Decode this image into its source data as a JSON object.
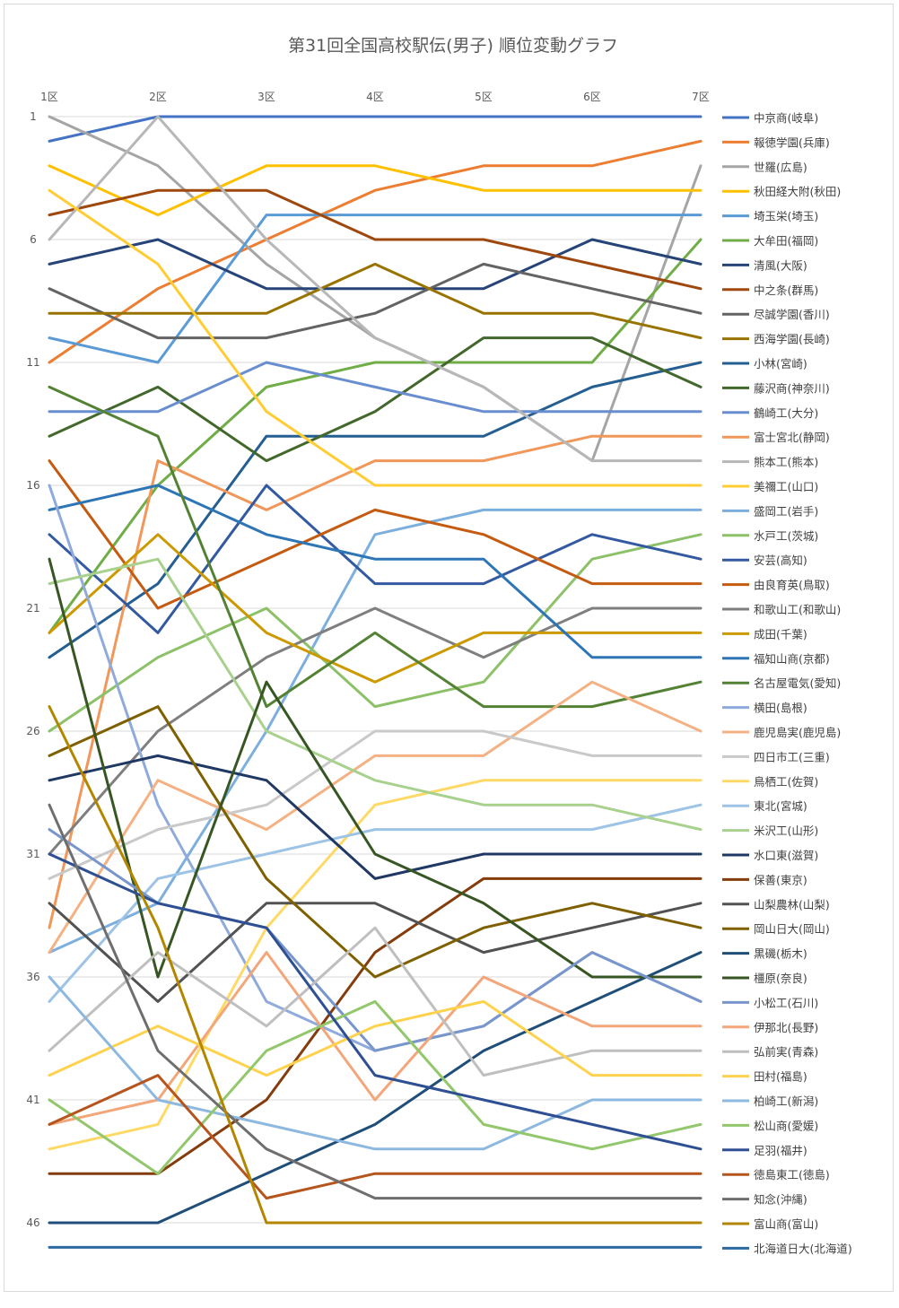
{
  "chart_data": {
    "type": "line",
    "title": "第31回全国高校駅伝(男子) 順位変動グラフ",
    "categories": [
      "1区",
      "2区",
      "3区",
      "4区",
      "5区",
      "6区",
      "7区"
    ],
    "y_ticks": [
      "1",
      "6",
      "11",
      "16",
      "21",
      "26",
      "31",
      "36",
      "41",
      "46"
    ],
    "ylim": [
      1,
      47
    ],
    "y_inverted": true,
    "grid": "horizontal",
    "legend_position": "right",
    "series": [
      {
        "name": "中京商(岐阜)",
        "color": "#4472C4",
        "values": [
          2,
          1,
          1,
          1,
          1,
          1,
          1
        ]
      },
      {
        "name": "報徳学園(兵庫)",
        "color": "#ED7D31",
        "values": [
          11,
          8,
          6,
          4,
          3,
          3,
          2
        ]
      },
      {
        "name": "世羅(広島)",
        "color": "#A5A5A5",
        "values": [
          1,
          3,
          7,
          10,
          12,
          15,
          3
        ]
      },
      {
        "name": "秋田経大附(秋田)",
        "color": "#FFC000",
        "values": [
          3,
          5,
          3,
          3,
          4,
          4,
          4
        ]
      },
      {
        "name": "埼玉栄(埼玉)",
        "color": "#5B9BD5",
        "values": [
          10,
          11,
          5,
          5,
          5,
          5,
          5
        ]
      },
      {
        "name": "大牟田(福岡)",
        "color": "#70AD47",
        "values": [
          22,
          16,
          12,
          11,
          11,
          11,
          6
        ]
      },
      {
        "name": "清風(大阪)",
        "color": "#264478",
        "values": [
          7,
          6,
          8,
          8,
          8,
          6,
          7
        ]
      },
      {
        "name": "中之条(群馬)",
        "color": "#9E480E",
        "values": [
          5,
          4,
          4,
          6,
          6,
          7,
          8
        ]
      },
      {
        "name": "尽誠学園(香川)",
        "color": "#636363",
        "values": [
          8,
          10,
          10,
          9,
          7,
          8,
          9
        ]
      },
      {
        "name": "西海学園(長崎)",
        "color": "#997300",
        "values": [
          9,
          9,
          9,
          7,
          9,
          9,
          10
        ]
      },
      {
        "name": "小林(宮崎)",
        "color": "#255E91",
        "values": [
          23,
          20,
          14,
          14,
          14,
          12,
          11
        ]
      },
      {
        "name": "藤沢商(神奈川)",
        "color": "#43682B",
        "values": [
          14,
          12,
          15,
          13,
          10,
          10,
          12
        ]
      },
      {
        "name": "鶴崎工(大分)",
        "color": "#698ED0",
        "values": [
          13,
          13,
          11,
          12,
          13,
          13,
          13
        ]
      },
      {
        "name": "富士宮北(静岡)",
        "color": "#F1975A",
        "values": [
          34,
          15,
          17,
          15,
          15,
          14,
          14
        ]
      },
      {
        "name": "熊本工(熊本)",
        "color": "#B7B7B7",
        "values": [
          6,
          1,
          6,
          10,
          12,
          15,
          15
        ]
      },
      {
        "name": "美禰工(山口)",
        "color": "#FFCD33",
        "values": [
          4,
          7,
          13,
          16,
          16,
          16,
          16
        ]
      },
      {
        "name": "盛岡工(岩手)",
        "color": "#7CAFDD",
        "values": [
          35,
          33,
          26,
          18,
          17,
          17,
          17
        ]
      },
      {
        "name": "水戸工(茨城)",
        "color": "#8CC168",
        "values": [
          26,
          23,
          21,
          25,
          24,
          19,
          18
        ]
      },
      {
        "name": "安芸(高知)",
        "color": "#335AA1",
        "values": [
          18,
          22,
          16,
          20,
          20,
          18,
          19
        ]
      },
      {
        "name": "由良育英(鳥取)",
        "color": "#C55A11",
        "values": [
          15,
          21,
          19,
          17,
          18,
          20,
          20
        ]
      },
      {
        "name": "和歌山工(和歌山)",
        "color": "#7F7F7F",
        "values": [
          31,
          26,
          23,
          21,
          23,
          21,
          21
        ]
      },
      {
        "name": "成田(千葉)",
        "color": "#CC9900",
        "values": [
          22,
          18,
          22,
          24,
          22,
          22,
          22
        ]
      },
      {
        "name": "福知山商(京都)",
        "color": "#2E75B6",
        "values": [
          17,
          16,
          18,
          19,
          19,
          23,
          23
        ]
      },
      {
        "name": "名古屋電気(愛知)",
        "color": "#548235",
        "values": [
          12,
          14,
          25,
          22,
          25,
          25,
          24
        ]
      },
      {
        "name": "横田(島根)",
        "color": "#8FAADC",
        "values": [
          16,
          29,
          37,
          39,
          38,
          35,
          37
        ]
      },
      {
        "name": "鹿児島実(鹿児島)",
        "color": "#F4B183",
        "values": [
          35,
          28,
          30,
          27,
          27,
          24,
          26
        ]
      },
      {
        "name": "四日市工(三重)",
        "color": "#C9C9C9",
        "values": [
          32,
          30,
          29,
          26,
          26,
          27,
          27
        ]
      },
      {
        "name": "鳥栖工(佐賀)",
        "color": "#FFD966",
        "values": [
          43,
          42,
          34,
          29,
          28,
          28,
          28
        ]
      },
      {
        "name": "東北(宮城)",
        "color": "#9DC3E6",
        "values": [
          37,
          32,
          31,
          30,
          30,
          30,
          29
        ]
      },
      {
        "name": "米沢工(山形)",
        "color": "#A9D18E",
        "values": [
          20,
          19,
          26,
          28,
          29,
          29,
          30
        ]
      },
      {
        "name": "水口東(滋賀)",
        "color": "#203864",
        "values": [
          28,
          27,
          28,
          32,
          31,
          31,
          31
        ]
      },
      {
        "name": "保善(東京)",
        "color": "#843C0C",
        "values": [
          44,
          44,
          41,
          35,
          32,
          32,
          32
        ]
      },
      {
        "name": "山梨農林(山梨)",
        "color": "#525252",
        "values": [
          33,
          37,
          33,
          33,
          35,
          34,
          33
        ]
      },
      {
        "name": "岡山日大(岡山)",
        "color": "#7F6000",
        "values": [
          27,
          25,
          32,
          36,
          34,
          33,
          34
        ]
      },
      {
        "name": "黒磯(栃木)",
        "color": "#1F4E79",
        "values": [
          46,
          46,
          44,
          42,
          39,
          37,
          35
        ]
      },
      {
        "name": "橿原(奈良)",
        "color": "#375623",
        "values": [
          19,
          36,
          24,
          31,
          33,
          36,
          36
        ]
      },
      {
        "name": "小松工(石川)",
        "color": "#7896CC",
        "values": [
          30,
          33,
          34,
          39,
          38,
          35,
          37
        ]
      },
      {
        "name": "伊那北(長野)",
        "color": "#F2A679",
        "values": [
          42,
          41,
          35,
          41,
          36,
          38,
          38
        ]
      },
      {
        "name": "弘前実(青森)",
        "color": "#BFBFBF",
        "values": [
          39,
          35,
          38,
          34,
          40,
          39,
          39
        ]
      },
      {
        "name": "田村(福島)",
        "color": "#FFD24D",
        "values": [
          40,
          38,
          40,
          38,
          37,
          40,
          40
        ]
      },
      {
        "name": "柏崎工(新潟)",
        "color": "#8DB8E0",
        "values": [
          36,
          41,
          42,
          43,
          43,
          41,
          41
        ]
      },
      {
        "name": "松山商(愛媛)",
        "color": "#92C76B",
        "values": [
          41,
          44,
          39,
          37,
          42,
          43,
          42
        ]
      },
      {
        "name": "足羽(福井)",
        "color": "#2F4F93",
        "values": [
          31,
          33,
          34,
          40,
          41,
          42,
          43
        ]
      },
      {
        "name": "徳島東工(徳島)",
        "color": "#B5541C",
        "values": [
          42,
          40,
          45,
          44,
          44,
          44,
          44
        ]
      },
      {
        "name": "知念(沖縄)",
        "color": "#6E6E6E",
        "values": [
          29,
          39,
          43,
          45,
          45,
          45,
          45
        ]
      },
      {
        "name": "富山商(富山)",
        "color": "#B38600",
        "values": [
          25,
          34,
          46,
          46,
          46,
          46,
          46
        ]
      },
      {
        "name": "北海道日大(北海道)",
        "color": "#2C6AA0",
        "values": [
          47,
          47,
          47,
          47,
          47,
          47,
          47
        ]
      }
    ]
  }
}
